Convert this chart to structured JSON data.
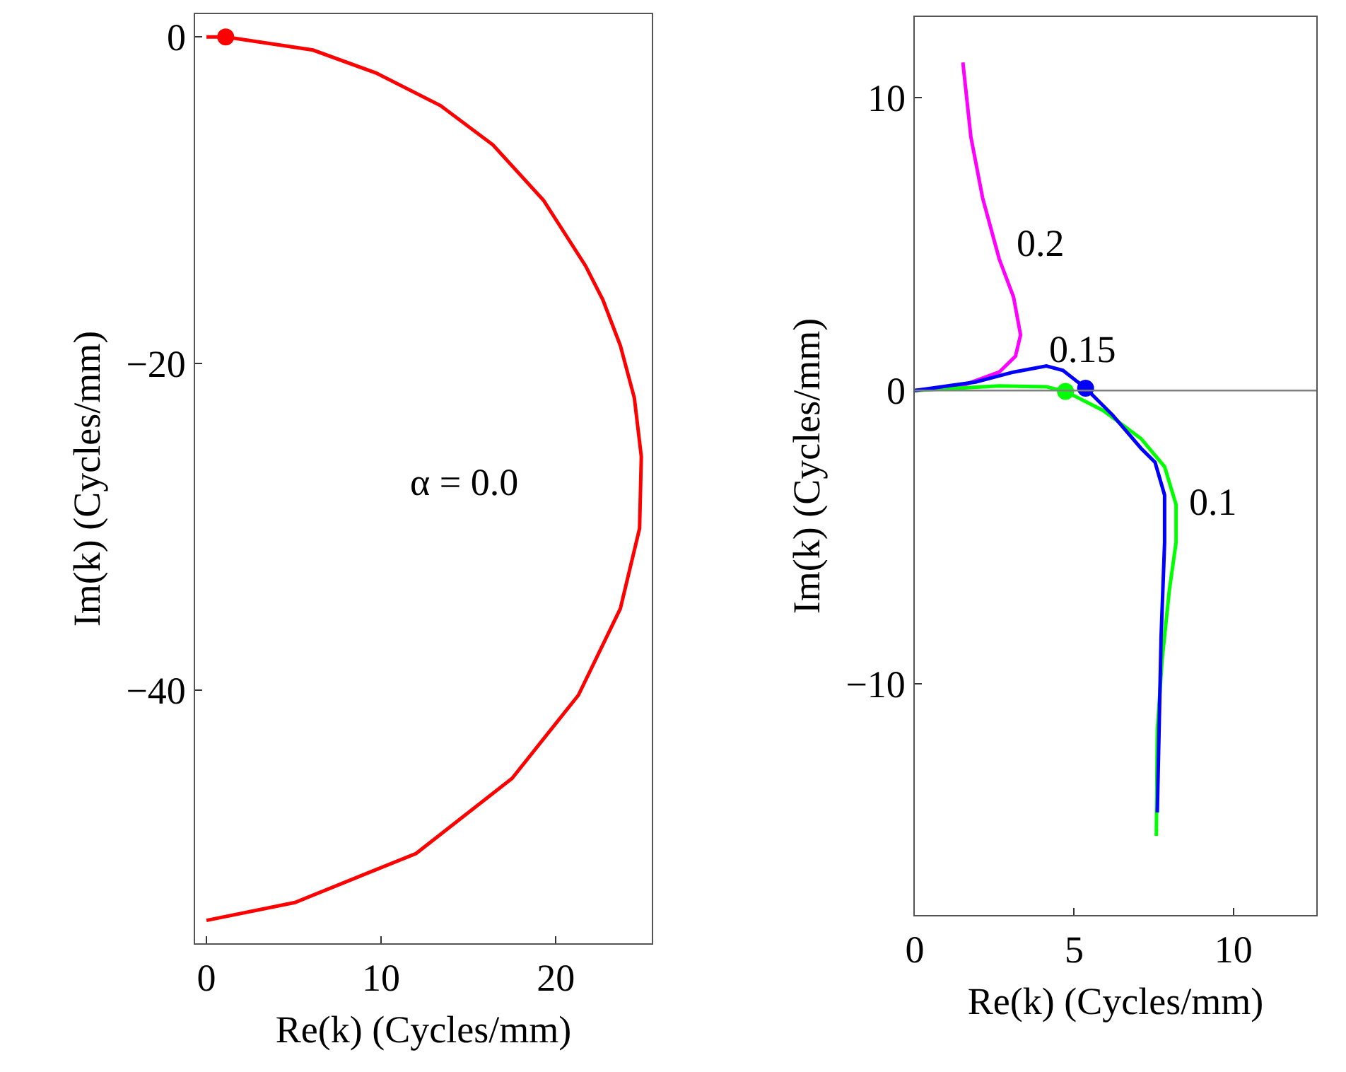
{
  "chart_data": [
    {
      "type": "line",
      "xlabel": "Re(k) (Cycles/mm)",
      "ylabel": "Im(k) (Cycles/mm)",
      "xlim": [
        -0.65,
        25.5
      ],
      "ylim": [
        -55.5,
        1.4
      ],
      "xticks": [
        0,
        10,
        20
      ],
      "yticks": [
        -40,
        -20,
        0
      ],
      "grid": false,
      "series": [
        {
          "name": "α = 0.0",
          "color": "#ff0000",
          "x": [
            0,
            1.1,
            6.1,
            9.7,
            13.4,
            16.4,
            19.3,
            21.7,
            22.7,
            23.7,
            24.5,
            24.9,
            24.8,
            23.7,
            21.3,
            17.5,
            12.0,
            5.07,
            0
          ],
          "values": [
            0,
            0,
            -0.8,
            -2.2,
            -4.2,
            -6.6,
            -10.0,
            -14.0,
            -16.1,
            -18.9,
            -22.1,
            -25.7,
            -30.1,
            -35.0,
            -40.3,
            -45.4,
            -50.0,
            -53.0,
            -54.1
          ]
        },
        {
          "type": "scatter",
          "color": "#ff0000",
          "x": [
            1.1
          ],
          "values": [
            0
          ]
        }
      ]
    },
    {
      "type": "line",
      "xlabel": "Re(k) (Cycles/mm)",
      "ylabel": "Im(k) (Cycles/mm)",
      "xlim": [
        0,
        12.6
      ],
      "ylim": [
        -17.9,
        12.75
      ],
      "xticks": [
        0,
        5,
        10
      ],
      "yticks": [
        -10,
        0,
        10
      ],
      "grid": false,
      "ref_lines": [
        {
          "axis": "y",
          "value": 0,
          "color": "#808080"
        }
      ],
      "series": [
        {
          "name": "0.2",
          "color": "#ff00ff",
          "x": [
            0,
            1.47,
            2.65,
            3.16,
            3.32,
            3.1,
            2.65,
            2.13,
            1.76,
            1.51
          ],
          "values": [
            0,
            0.16,
            0.63,
            1.17,
            1.9,
            3.19,
            4.49,
            6.57,
            8.66,
            11.2
          ]
        },
        {
          "name": "0.1",
          "color": "#00ff00",
          "x": [
            0,
            2.65,
            4.13,
            4.73,
            5.91,
            7.1,
            7.84,
            8.2,
            8.2,
            7.99,
            7.76,
            7.61,
            7.58
          ],
          "values": [
            0,
            0.16,
            0.13,
            -0.03,
            -0.68,
            -1.64,
            -2.6,
            -3.9,
            -5.18,
            -6.8,
            -9.2,
            -11.6,
            -15.2
          ]
        },
        {
          "name": "0.15",
          "color": "#0000ff",
          "x": [
            0,
            1.91,
            3.1,
            4.13,
            4.65,
            5.36,
            6.21,
            7.1,
            7.54,
            7.84,
            7.84,
            7.73,
            7.61
          ],
          "values": [
            0,
            0.29,
            0.63,
            0.84,
            0.69,
            0.08,
            -0.84,
            -1.97,
            -2.45,
            -3.57,
            -5.18,
            -8.4,
            -14.4
          ]
        },
        {
          "type": "scatter",
          "color": "#00ff00",
          "x": [
            4.73
          ],
          "values": [
            -0.03
          ]
        },
        {
          "type": "scatter",
          "color": "#0000ff",
          "x": [
            5.36
          ],
          "values": [
            0.08
          ]
        }
      ]
    }
  ]
}
